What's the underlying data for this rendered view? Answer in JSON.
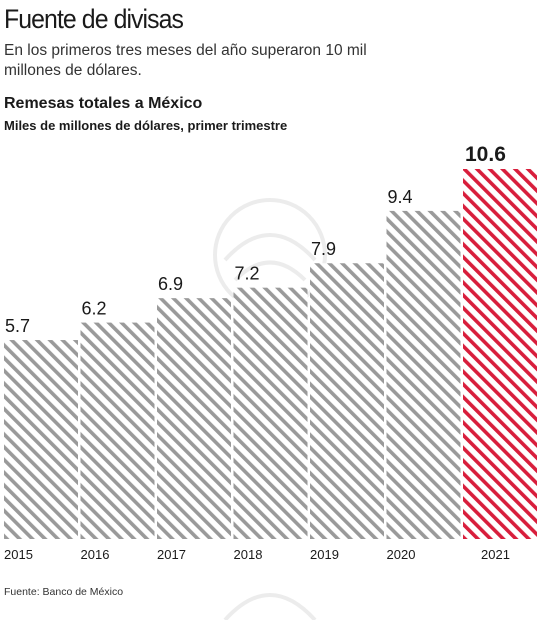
{
  "header": {
    "headline": "Fuente de divisas",
    "subhead": "En los primeros tres meses del año superaron 10 mil millones de dólares."
  },
  "chart_data": {
    "type": "bar",
    "title": "Remesas totales a México",
    "subtitle": "Miles de millones de dólares, primer trimestre",
    "categories": [
      "2015",
      "2016",
      "2017",
      "2018",
      "2019",
      "2020",
      "2021"
    ],
    "values": [
      5.7,
      6.2,
      6.9,
      7.2,
      7.9,
      9.4,
      10.6
    ],
    "value_labels": [
      "5.7",
      "6.2",
      "6.9",
      "7.2",
      "7.9",
      "9.4",
      "10.6"
    ],
    "ylim": [
      0,
      10.6
    ],
    "grid": false,
    "highlight_index": 6,
    "colors": {
      "default": "#9a9a9a",
      "highlight": "#d81e3c"
    },
    "pattern": "diagonal-hatch"
  },
  "footer": {
    "source": "Fuente: Banco de México"
  }
}
